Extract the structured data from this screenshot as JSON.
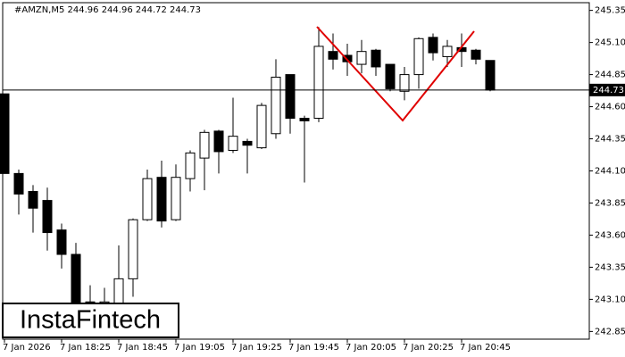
{
  "chart_data": {
    "type": "candlestick",
    "title": "#AMZN,M5  244.96 244.96 244.72 244.73",
    "watermark": "InstaFintech",
    "categories": [
      "7 Jan 2026",
      null,
      null,
      null,
      "7 Jan 18:25",
      null,
      null,
      null,
      "7 Jan 18:45",
      null,
      null,
      null,
      "7 Jan 19:05",
      null,
      null,
      null,
      "7 Jan 19:25",
      null,
      null,
      null,
      "7 Jan 19:45",
      null,
      null,
      null,
      "7 Jan 20:05",
      null,
      null,
      null,
      "7 Jan 20:25",
      null,
      null,
      null,
      "7 Jan 20:45",
      null,
      null
    ],
    "open": [
      244.7,
      244.08,
      243.94,
      243.87,
      243.64,
      243.45,
      243.08,
      243.05,
      243.07,
      243.26,
      243.72,
      244.05,
      243.72,
      244.04,
      244.2,
      244.41,
      244.26,
      244.33,
      244.28,
      244.39,
      244.85,
      244.51,
      244.51,
      245.03,
      245.0,
      244.93,
      245.04,
      244.93,
      244.72,
      244.85,
      245.14,
      244.99,
      245.06,
      245.04,
      244.96
    ],
    "high": [
      244.7,
      244.11,
      243.99,
      243.97,
      243.69,
      243.54,
      243.21,
      243.19,
      243.52,
      243.73,
      244.11,
      244.18,
      244.15,
      244.26,
      244.42,
      244.42,
      244.67,
      244.35,
      244.63,
      244.97,
      244.85,
      244.53,
      245.22,
      245.17,
      245.09,
      245.12,
      245.05,
      244.93,
      244.91,
      245.14,
      245.17,
      245.12,
      245.17,
      245.05,
      244.96
    ],
    "low": [
      244.08,
      243.76,
      243.62,
      243.48,
      243.34,
      243.03,
      242.99,
      243.03,
      243.03,
      243.12,
      243.71,
      243.66,
      243.71,
      243.94,
      243.95,
      244.08,
      244.24,
      244.08,
      244.27,
      244.35,
      244.39,
      244.01,
      244.48,
      244.89,
      244.84,
      244.86,
      244.84,
      244.72,
      244.65,
      244.74,
      244.96,
      244.91,
      244.91,
      244.93,
      244.72
    ],
    "close": [
      244.08,
      243.92,
      243.81,
      243.62,
      243.45,
      243.07,
      243.05,
      243.08,
      243.26,
      243.72,
      244.04,
      243.71,
      244.05,
      244.24,
      244.4,
      244.25,
      244.37,
      244.3,
      244.61,
      244.83,
      244.51,
      244.49,
      245.07,
      244.97,
      244.95,
      245.03,
      244.91,
      244.74,
      244.85,
      245.13,
      245.02,
      245.07,
      245.03,
      244.97,
      244.73
    ],
    "last_price": 244.73,
    "ylim": [
      242.79,
      245.41
    ],
    "yticks": [
      245.35,
      {
        "value": 245.1,
        "label": "245.10"
      },
      244.85,
      {
        "value": 244.6,
        "label": "244.60"
      },
      244.35,
      {
        "value": 244.1,
        "label": "244.10"
      },
      243.85,
      {
        "value": 243.6,
        "label": "243.60"
      },
      243.35,
      {
        "value": 243.1,
        "label": "243.10"
      },
      242.85
    ]
  }
}
